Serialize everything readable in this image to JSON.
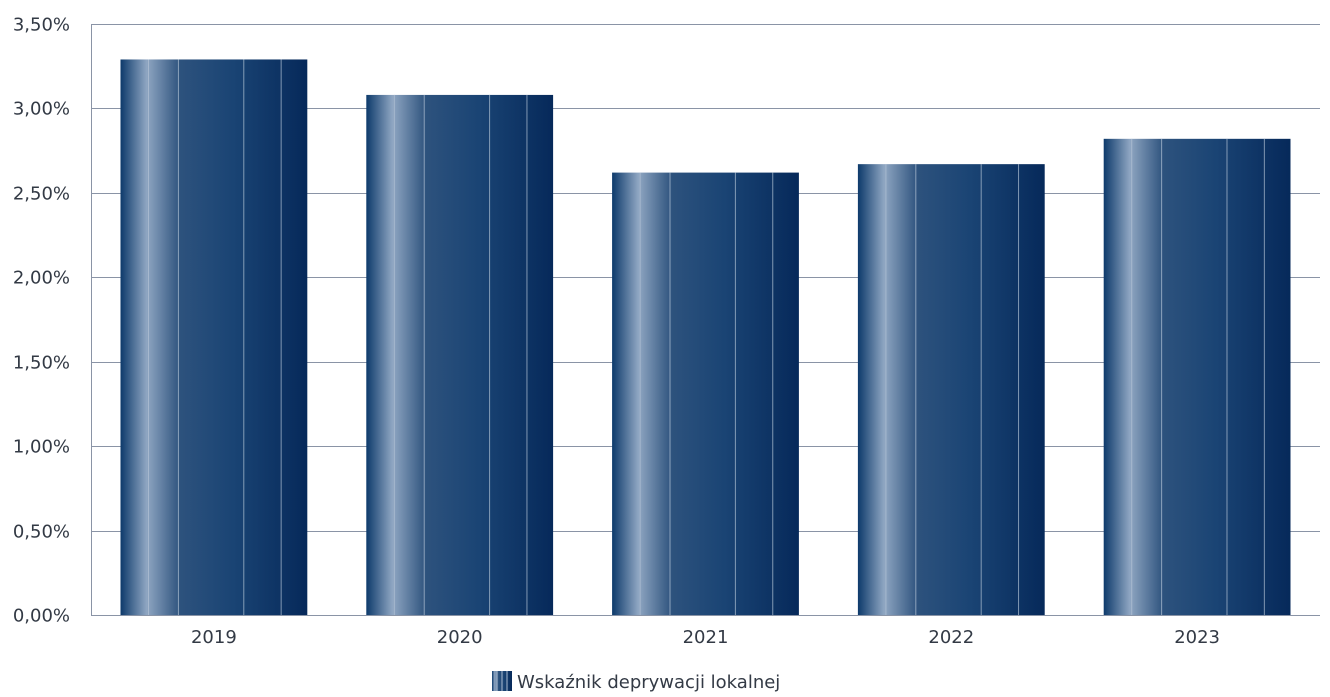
{
  "chart_data": {
    "type": "bar",
    "categories": [
      "2019",
      "2020",
      "2021",
      "2022",
      "2023"
    ],
    "series": [
      {
        "name": "Wskaźnik deprywacji lokalnej",
        "values": [
          3.29,
          3.08,
          2.62,
          2.67,
          2.82
        ]
      }
    ],
    "ylim": [
      0,
      3.5
    ],
    "y_ticks": [
      0,
      0.5,
      1.0,
      1.5,
      2.0,
      2.5,
      3.0,
      3.5
    ],
    "y_tick_labels": [
      "0,00%",
      "0,50%",
      "1,00%",
      "1,50%",
      "2,00%",
      "2,50%",
      "3,00%",
      "3,50%"
    ],
    "grid": true,
    "legend_position": "bottom-center",
    "colors": {
      "bar_dark": "#0a3566",
      "bar_light": "#8fa6c2",
      "grid": "#8a94a6",
      "text": "#333a45"
    }
  }
}
